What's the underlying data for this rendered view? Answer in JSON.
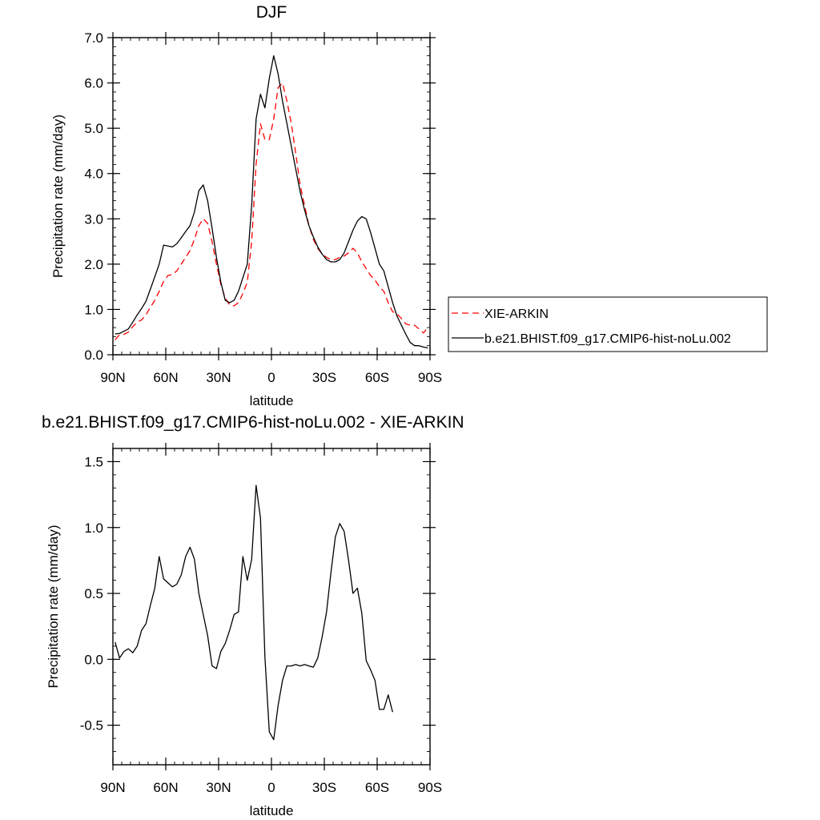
{
  "chart_data": [
    {
      "type": "line",
      "title": "DJF",
      "xlabel": "latitude",
      "ylabel": "Precipitation rate (mm/day)",
      "xlim": [
        -90,
        90
      ],
      "ylim": [
        0,
        7
      ],
      "xticks": [
        {
          "v": -90,
          "label": "90N"
        },
        {
          "v": -60,
          "label": "60N"
        },
        {
          "v": -30,
          "label": "30N"
        },
        {
          "v": 0,
          "label": "0"
        },
        {
          "v": 30,
          "label": "30S"
        },
        {
          "v": 60,
          "label": "60S"
        },
        {
          "v": 90,
          "label": "90S"
        }
      ],
      "yticks": [
        {
          "v": 0,
          "label": "0.0"
        },
        {
          "v": 1,
          "label": "1.0"
        },
        {
          "v": 2,
          "label": "2.0"
        },
        {
          "v": 3,
          "label": "3.0"
        },
        {
          "v": 4,
          "label": "4.0"
        },
        {
          "v": 5,
          "label": "5.0"
        },
        {
          "v": 6,
          "label": "6.0"
        },
        {
          "v": 7,
          "label": "7.0"
        }
      ],
      "legend": {
        "position": "right",
        "entries": [
          "XIE-ARKIN",
          "b.e21.BHIST.f09_g17.CMIP6-hist-noLu.002"
        ]
      },
      "series": [
        {
          "name": "XIE-ARKIN",
          "color": "#ff0000",
          "dash": true,
          "points": [
            [
              -88.75,
              0.33
            ],
            [
              -86.25,
              0.44
            ],
            [
              -83.75,
              0.45
            ],
            [
              -81.25,
              0.5
            ],
            [
              -78.75,
              0.62
            ],
            [
              -76.25,
              0.72
            ],
            [
              -73.75,
              0.77
            ],
            [
              -71.25,
              0.88
            ],
            [
              -68.75,
              1.05
            ],
            [
              -66.25,
              1.2
            ],
            [
              -63.75,
              1.4
            ],
            [
              -61.25,
              1.62
            ],
            [
              -58.75,
              1.75
            ],
            [
              -56.25,
              1.77
            ],
            [
              -53.75,
              1.85
            ],
            [
              -51.25,
              2.0
            ],
            [
              -48.75,
              2.15
            ],
            [
              -46.25,
              2.3
            ],
            [
              -43.75,
              2.55
            ],
            [
              -41.25,
              2.85
            ],
            [
              -38.75,
              3.0
            ],
            [
              -36.25,
              2.9
            ],
            [
              -33.75,
              2.5
            ],
            [
              -31.25,
              2.0
            ],
            [
              -28.75,
              1.55
            ],
            [
              -26.25,
              1.25
            ],
            [
              -23.75,
              1.1
            ],
            [
              -21.25,
              1.08
            ],
            [
              -18.75,
              1.15
            ],
            [
              -16.25,
              1.35
            ],
            [
              -13.75,
              1.6
            ],
            [
              -11.25,
              2.5
            ],
            [
              -8.75,
              4.2
            ],
            [
              -6.25,
              5.1
            ],
            [
              -3.75,
              4.75
            ],
            [
              -1.25,
              4.75
            ],
            [
              1.25,
              5.2
            ],
            [
              3.75,
              5.9
            ],
            [
              6.25,
              6.0
            ],
            [
              8.75,
              5.6
            ],
            [
              11.25,
              5.1
            ],
            [
              13.75,
              4.45
            ],
            [
              16.25,
              3.75
            ],
            [
              18.75,
              3.3
            ],
            [
              21.25,
              2.85
            ],
            [
              23.75,
              2.55
            ],
            [
              26.25,
              2.35
            ],
            [
              28.75,
              2.22
            ],
            [
              31.25,
              2.15
            ],
            [
              33.75,
              2.1
            ],
            [
              36.25,
              2.1
            ],
            [
              38.75,
              2.15
            ],
            [
              41.25,
              2.18
            ],
            [
              43.75,
              2.25
            ],
            [
              46.25,
              2.35
            ],
            [
              48.75,
              2.25
            ],
            [
              51.25,
              2.05
            ],
            [
              53.75,
              1.9
            ],
            [
              56.25,
              1.75
            ],
            [
              58.75,
              1.65
            ],
            [
              61.25,
              1.5
            ],
            [
              63.75,
              1.4
            ],
            [
              66.25,
              1.15
            ],
            [
              68.75,
              0.95
            ],
            [
              71.25,
              0.9
            ],
            [
              73.75,
              0.8
            ],
            [
              76.25,
              0.68
            ],
            [
              78.75,
              0.65
            ],
            [
              81.25,
              0.65
            ],
            [
              83.75,
              0.57
            ],
            [
              86.25,
              0.48
            ],
            [
              88.75,
              0.6
            ]
          ]
        },
        {
          "name": "b.e21.BHIST.f09_g17.CMIP6-hist-noLu.002",
          "color": "#000000",
          "dash": false,
          "points": [
            [
              -88.75,
              0.46
            ],
            [
              -86.25,
              0.47
            ],
            [
              -83.75,
              0.52
            ],
            [
              -81.25,
              0.57
            ],
            [
              -78.75,
              0.72
            ],
            [
              -76.25,
              0.88
            ],
            [
              -73.75,
              1.02
            ],
            [
              -71.25,
              1.18
            ],
            [
              -68.75,
              1.45
            ],
            [
              -66.25,
              1.72
            ],
            [
              -63.75,
              2.0
            ],
            [
              -61.25,
              2.42
            ],
            [
              -58.75,
              2.4
            ],
            [
              -56.25,
              2.38
            ],
            [
              -53.75,
              2.45
            ],
            [
              -51.25,
              2.58
            ],
            [
              -48.75,
              2.72
            ],
            [
              -46.25,
              2.85
            ],
            [
              -43.75,
              3.15
            ],
            [
              -41.25,
              3.62
            ],
            [
              -38.75,
              3.75
            ],
            [
              -36.25,
              3.4
            ],
            [
              -33.75,
              2.8
            ],
            [
              -31.25,
              2.15
            ],
            [
              -28.75,
              1.6
            ],
            [
              -26.25,
              1.2
            ],
            [
              -23.75,
              1.15
            ],
            [
              -21.25,
              1.2
            ],
            [
              -18.75,
              1.4
            ],
            [
              -16.25,
              1.7
            ],
            [
              -13.75,
              2.0
            ],
            [
              -11.25,
              3.3
            ],
            [
              -8.75,
              5.2
            ],
            [
              -6.25,
              5.75
            ],
            [
              -3.75,
              5.45
            ],
            [
              -1.25,
              6.1
            ],
            [
              1.25,
              6.6
            ],
            [
              3.75,
              6.2
            ],
            [
              6.25,
              5.6
            ],
            [
              8.75,
              5.1
            ],
            [
              11.25,
              4.6
            ],
            [
              13.75,
              4.1
            ],
            [
              16.25,
              3.6
            ],
            [
              18.75,
              3.2
            ],
            [
              21.25,
              2.85
            ],
            [
              23.75,
              2.6
            ],
            [
              26.25,
              2.38
            ],
            [
              28.75,
              2.22
            ],
            [
              31.25,
              2.1
            ],
            [
              33.75,
              2.05
            ],
            [
              36.25,
              2.05
            ],
            [
              38.75,
              2.1
            ],
            [
              41.25,
              2.25
            ],
            [
              43.75,
              2.5
            ],
            [
              46.25,
              2.75
            ],
            [
              48.75,
              2.95
            ],
            [
              51.25,
              3.05
            ],
            [
              53.75,
              3.0
            ],
            [
              56.25,
              2.7
            ],
            [
              58.75,
              2.35
            ],
            [
              61.25,
              2.0
            ],
            [
              63.75,
              1.85
            ],
            [
              66.25,
              1.5
            ],
            [
              68.75,
              1.15
            ],
            [
              71.25,
              0.85
            ],
            [
              73.75,
              0.65
            ],
            [
              76.25,
              0.45
            ],
            [
              78.75,
              0.27
            ],
            [
              81.25,
              0.2
            ],
            [
              83.75,
              0.2
            ],
            [
              86.25,
              0.17
            ],
            [
              88.75,
              0.15
            ]
          ]
        }
      ]
    },
    {
      "type": "line",
      "title": "b.e21.BHIST.f09_g17.CMIP6-hist-noLu.002 - XIE-ARKIN",
      "xlabel": "latitude",
      "ylabel": "Precipitation rate (mm/day)",
      "xlim": [
        -90,
        90
      ],
      "ylim": [
        -0.8,
        1.6
      ],
      "xticks": [
        {
          "v": -90,
          "label": "90N"
        },
        {
          "v": -60,
          "label": "60N"
        },
        {
          "v": -30,
          "label": "30N"
        },
        {
          "v": 0,
          "label": "0"
        },
        {
          "v": 30,
          "label": "30S"
        },
        {
          "v": 60,
          "label": "60S"
        },
        {
          "v": 90,
          "label": "90S"
        }
      ],
      "yticks": [
        {
          "v": -0.5,
          "label": "-0.5"
        },
        {
          "v": 0,
          "label": "0.0"
        },
        {
          "v": 0.5,
          "label": "0.5"
        },
        {
          "v": 1.0,
          "label": "1.0"
        },
        {
          "v": 1.5,
          "label": "1.5"
        }
      ],
      "series": [
        {
          "color": "#000000",
          "dash": false,
          "points": [
            [
              -88.75,
              0.13
            ],
            [
              -86.25,
              0.01
            ],
            [
              -83.75,
              0.06
            ],
            [
              -81.25,
              0.08
            ],
            [
              -78.75,
              0.05
            ],
            [
              -76.25,
              0.1
            ],
            [
              -73.75,
              0.22
            ],
            [
              -71.25,
              0.27
            ],
            [
              -68.75,
              0.41
            ],
            [
              -66.25,
              0.54
            ],
            [
              -63.75,
              0.78
            ],
            [
              -61.25,
              0.61
            ],
            [
              -58.75,
              0.58
            ],
            [
              -56.25,
              0.55
            ],
            [
              -53.75,
              0.57
            ],
            [
              -51.25,
              0.64
            ],
            [
              -48.75,
              0.78
            ],
            [
              -46.25,
              0.85
            ],
            [
              -43.75,
              0.76
            ],
            [
              -41.25,
              0.5
            ],
            [
              -38.75,
              0.34
            ],
            [
              -36.25,
              0.18
            ],
            [
              -33.75,
              -0.05
            ],
            [
              -31.25,
              -0.07
            ],
            [
              -28.75,
              0.06
            ],
            [
              -26.25,
              0.12
            ],
            [
              -23.75,
              0.22
            ],
            [
              -21.25,
              0.34
            ],
            [
              -18.75,
              0.36
            ],
            [
              -16.25,
              0.78
            ],
            [
              -13.75,
              0.6
            ],
            [
              -11.25,
              0.76
            ],
            [
              -8.75,
              1.32
            ],
            [
              -6.25,
              1.07
            ],
            [
              -3.75,
              0.02
            ],
            [
              -1.25,
              -0.55
            ],
            [
              1.25,
              -0.61
            ],
            [
              3.75,
              -0.35
            ],
            [
              6.25,
              -0.16
            ],
            [
              8.75,
              -0.05
            ],
            [
              11.25,
              -0.05
            ],
            [
              13.75,
              -0.04
            ],
            [
              16.25,
              -0.05
            ],
            [
              18.75,
              -0.04
            ],
            [
              21.25,
              -0.05
            ],
            [
              23.75,
              -0.06
            ],
            [
              26.25,
              0.01
            ],
            [
              28.75,
              0.17
            ],
            [
              31.25,
              0.36
            ],
            [
              33.75,
              0.66
            ],
            [
              36.25,
              0.93
            ],
            [
              38.75,
              1.03
            ],
            [
              41.25,
              0.97
            ],
            [
              43.75,
              0.75
            ],
            [
              46.25,
              0.5
            ],
            [
              48.75,
              0.54
            ],
            [
              51.25,
              0.35
            ],
            [
              53.75,
              -0.01
            ],
            [
              56.25,
              -0.08
            ],
            [
              58.75,
              -0.16
            ],
            [
              61.25,
              -0.38
            ],
            [
              63.75,
              -0.38
            ],
            [
              66.25,
              -0.27
            ],
            [
              68.75,
              -0.4
            ]
          ]
        }
      ]
    }
  ]
}
